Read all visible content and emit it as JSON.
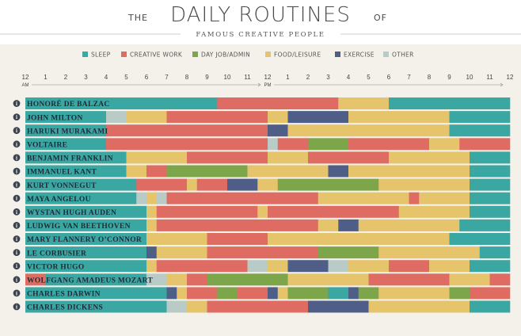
{
  "title": {
    "prefix": "THE",
    "main": "DAILY ROUTINES",
    "suffix": "OF",
    "subtitle": "FAMOUS CREATIVE PEOPLE"
  },
  "colors": {
    "sleep": "#3aa7a2",
    "creative": "#df6c62",
    "dayjob": "#7da64a",
    "food": "#e6c46c",
    "exercise": "#4e5e86",
    "other": "#b9cbc6"
  },
  "info_icon": "info-icon",
  "chart_data": {
    "type": "timeline",
    "legend": [
      {
        "key": "sleep",
        "label": "SLEEP"
      },
      {
        "key": "creative",
        "label": "CREATIVE WORK"
      },
      {
        "key": "dayjob",
        "label": "DAY JOB/ADMIN"
      },
      {
        "key": "food",
        "label": "FOOD/LEISURE"
      },
      {
        "key": "exercise",
        "label": "EXERCISE"
      },
      {
        "key": "other",
        "label": "OTHER"
      }
    ],
    "x_range_hours": [
      0,
      24
    ],
    "ticks": [
      "12",
      "1",
      "2",
      "3",
      "4",
      "5",
      "6",
      "7",
      "8",
      "9",
      "10",
      "11",
      "12",
      "1",
      "2",
      "3",
      "4",
      "5",
      "6",
      "7",
      "8",
      "9",
      "10",
      "11",
      "12"
    ],
    "am_label": "AM",
    "pm_label": "PM",
    "people": [
      {
        "name": "HONORÉ DE BALZAC",
        "segments": [
          [
            0,
            8,
            "sleep"
          ],
          [
            8,
            9.5,
            "sleep"
          ],
          [
            9.5,
            15.5,
            "creative"
          ],
          [
            15.5,
            18,
            "food"
          ],
          [
            18,
            24,
            "sleep"
          ]
        ]
      },
      {
        "name": "JOHN MILTON",
        "segments": [
          [
            0,
            4,
            "sleep"
          ],
          [
            4,
            5,
            "other"
          ],
          [
            5,
            7,
            "food"
          ],
          [
            7,
            12,
            "creative"
          ],
          [
            12,
            13,
            "food"
          ],
          [
            13,
            16,
            "exercise"
          ],
          [
            16,
            21,
            "food"
          ],
          [
            21,
            24,
            "sleep"
          ]
        ]
      },
      {
        "name": "HARUKI MURAKAMI",
        "segments": [
          [
            0,
            4,
            "sleep"
          ],
          [
            4,
            12,
            "creative"
          ],
          [
            12,
            13,
            "exercise"
          ],
          [
            13,
            21,
            "food"
          ],
          [
            21,
            24,
            "sleep"
          ]
        ]
      },
      {
        "name": "VOLTAIRE",
        "segments": [
          [
            0,
            4,
            "sleep"
          ],
          [
            4,
            12,
            "creative"
          ],
          [
            12,
            12.5,
            "other"
          ],
          [
            12.5,
            14,
            "creative"
          ],
          [
            14,
            16,
            "dayjob"
          ],
          [
            16,
            20,
            "creative"
          ],
          [
            20,
            21.5,
            "food"
          ],
          [
            21.5,
            24,
            "creative"
          ]
        ]
      },
      {
        "name": "BENJAMIN FRANKLIN",
        "segments": [
          [
            0,
            5,
            "sleep"
          ],
          [
            5,
            8,
            "food"
          ],
          [
            8,
            12,
            "creative"
          ],
          [
            12,
            14,
            "food"
          ],
          [
            14,
            18,
            "creative"
          ],
          [
            18,
            22,
            "food"
          ],
          [
            22,
            24,
            "sleep"
          ]
        ]
      },
      {
        "name": "IMMANUEL KANT",
        "segments": [
          [
            0,
            5,
            "sleep"
          ],
          [
            5,
            6,
            "food"
          ],
          [
            6,
            7,
            "creative"
          ],
          [
            7,
            11,
            "dayjob"
          ],
          [
            11,
            15,
            "food"
          ],
          [
            15,
            16,
            "exercise"
          ],
          [
            16,
            22,
            "food"
          ],
          [
            22,
            24,
            "sleep"
          ]
        ]
      },
      {
        "name": "KURT VONNEGUT",
        "segments": [
          [
            0,
            5.5,
            "sleep"
          ],
          [
            5.5,
            8,
            "creative"
          ],
          [
            8,
            8.5,
            "food"
          ],
          [
            8.5,
            10,
            "creative"
          ],
          [
            10,
            11.5,
            "exercise"
          ],
          [
            11.5,
            12.5,
            "food"
          ],
          [
            12.5,
            17.5,
            "dayjob"
          ],
          [
            17.5,
            22,
            "food"
          ],
          [
            22,
            24,
            "sleep"
          ]
        ]
      },
      {
        "name": "MAYA ANGELOU",
        "segments": [
          [
            0,
            5.5,
            "sleep"
          ],
          [
            5.5,
            6,
            "other"
          ],
          [
            6,
            6.5,
            "food"
          ],
          [
            6.5,
            7,
            "other"
          ],
          [
            7,
            14.5,
            "creative"
          ],
          [
            14.5,
            19,
            "food"
          ],
          [
            19,
            19.5,
            "creative"
          ],
          [
            19.5,
            22,
            "food"
          ],
          [
            22,
            24,
            "sleep"
          ]
        ]
      },
      {
        "name": "WYSTAN HUGH AUDEN",
        "segments": [
          [
            0,
            6,
            "sleep"
          ],
          [
            6,
            6.5,
            "food"
          ],
          [
            6.5,
            11.5,
            "creative"
          ],
          [
            11.5,
            12,
            "food"
          ],
          [
            12,
            18.5,
            "creative"
          ],
          [
            18.5,
            22,
            "food"
          ],
          [
            22,
            24,
            "sleep"
          ]
        ]
      },
      {
        "name": "LUDWIG VAN BEETHOVEN",
        "segments": [
          [
            0,
            6,
            "sleep"
          ],
          [
            6,
            6.5,
            "food"
          ],
          [
            6.5,
            14.5,
            "creative"
          ],
          [
            14.5,
            15.5,
            "food"
          ],
          [
            15.5,
            16.5,
            "exercise"
          ],
          [
            16.5,
            21.5,
            "food"
          ],
          [
            21.5,
            24,
            "sleep"
          ]
        ]
      },
      {
        "name": "MARY FLANNERY O’CONNOR",
        "segments": [
          [
            0,
            6,
            "sleep"
          ],
          [
            6,
            9,
            "food"
          ],
          [
            9,
            12,
            "creative"
          ],
          [
            12,
            21,
            "food"
          ],
          [
            21,
            24,
            "sleep"
          ]
        ]
      },
      {
        "name": "LE CORBUSIER",
        "segments": [
          [
            0,
            6,
            "sleep"
          ],
          [
            6,
            6.5,
            "exercise"
          ],
          [
            6.5,
            9,
            "food"
          ],
          [
            9,
            14.5,
            "creative"
          ],
          [
            14.5,
            17.5,
            "dayjob"
          ],
          [
            17.5,
            22.5,
            "food"
          ],
          [
            22.5,
            24,
            "sleep"
          ]
        ]
      },
      {
        "name": "VICTOR HUGO",
        "segments": [
          [
            0,
            6,
            "sleep"
          ],
          [
            6,
            6.5,
            "food"
          ],
          [
            6.5,
            11,
            "creative"
          ],
          [
            11,
            12,
            "other"
          ],
          [
            12,
            13,
            "food"
          ],
          [
            13,
            15,
            "exercise"
          ],
          [
            15,
            16,
            "other"
          ],
          [
            16,
            18,
            "food"
          ],
          [
            18,
            20,
            "creative"
          ],
          [
            20,
            22,
            "food"
          ],
          [
            22,
            24,
            "sleep"
          ]
        ]
      },
      {
        "name": "WOLFGANG AMADEUS MOZART",
        "segments": [
          [
            0,
            1,
            "creative"
          ],
          [
            1,
            6,
            "sleep"
          ],
          [
            6,
            7,
            "other"
          ],
          [
            7,
            8,
            "food"
          ],
          [
            8,
            9,
            "creative"
          ],
          [
            9,
            13,
            "dayjob"
          ],
          [
            13,
            17,
            "food"
          ],
          [
            17,
            21,
            "creative"
          ],
          [
            21,
            23,
            "food"
          ],
          [
            23,
            24,
            "creative"
          ]
        ]
      },
      {
        "name": "CHARLES DARWIN",
        "segments": [
          [
            0,
            7,
            "sleep"
          ],
          [
            7,
            7.5,
            "exercise"
          ],
          [
            7.5,
            8,
            "food"
          ],
          [
            8,
            9.5,
            "creative"
          ],
          [
            9.5,
            10.5,
            "dayjob"
          ],
          [
            10.5,
            12,
            "creative"
          ],
          [
            12,
            12.5,
            "exercise"
          ],
          [
            12.5,
            13,
            "food"
          ],
          [
            13,
            15,
            "dayjob"
          ],
          [
            15,
            16,
            "sleep"
          ],
          [
            16,
            16.5,
            "exercise"
          ],
          [
            16.5,
            17.5,
            "dayjob"
          ],
          [
            17.5,
            21,
            "food"
          ],
          [
            21,
            22,
            "dayjob"
          ],
          [
            22,
            24,
            "creative"
          ]
        ]
      },
      {
        "name": "CHARLES DICKENS",
        "segments": [
          [
            0,
            7,
            "sleep"
          ],
          [
            7,
            8,
            "other"
          ],
          [
            8,
            9,
            "food"
          ],
          [
            9,
            14,
            "creative"
          ],
          [
            14,
            17,
            "exercise"
          ],
          [
            17,
            22,
            "food"
          ],
          [
            22,
            24,
            "sleep"
          ]
        ]
      }
    ]
  }
}
